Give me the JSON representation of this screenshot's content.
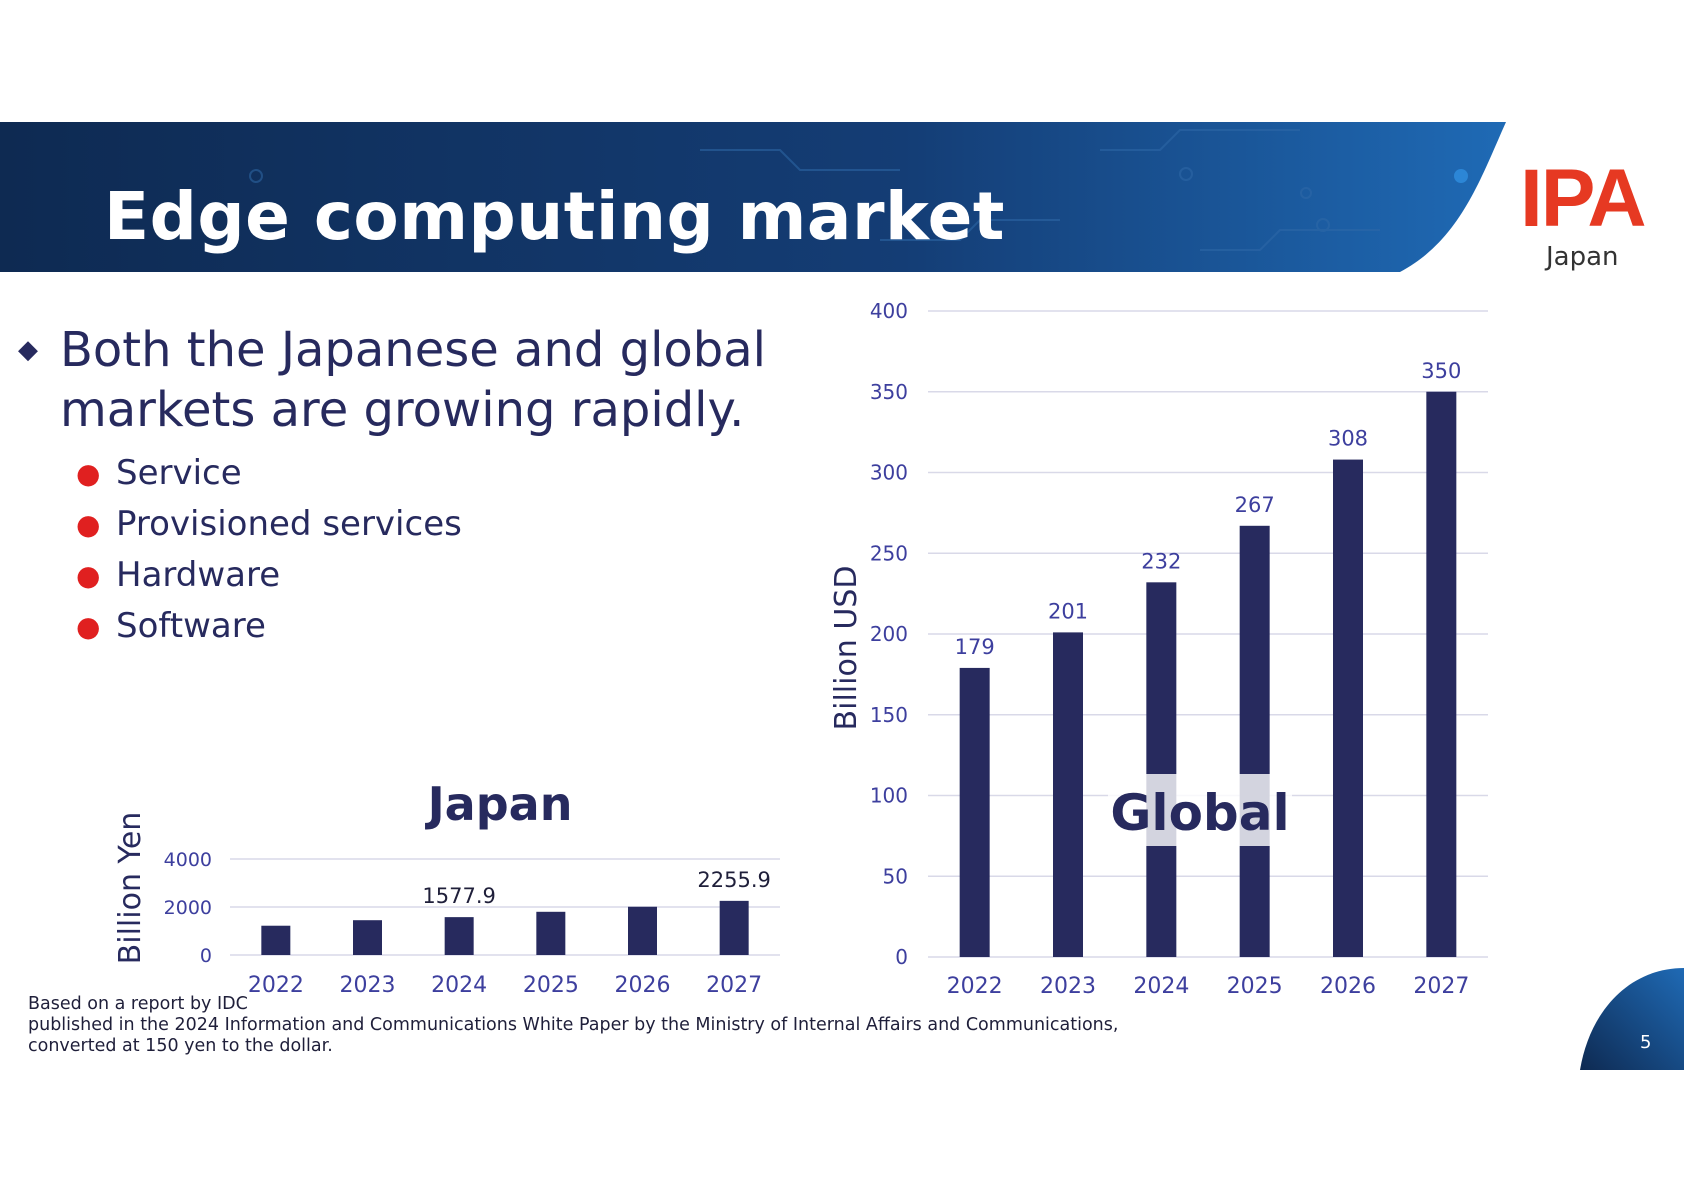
{
  "slide": {
    "title": "Edge computing market",
    "logo": {
      "text": "IPA",
      "subtitle": "Japan"
    },
    "bullet_main": "Both the Japanese and global markets are growing rapidly.",
    "sub_bullets": [
      "Service",
      "Provisioned services",
      "Hardware",
      "Software"
    ],
    "footnote_lines": [
      "Based on a report by IDC",
      "published in the 2024 Information and Communications White Paper by the Ministry of Internal Affairs and Communications,",
      "converted at 150 yen to the dollar."
    ],
    "page_number": "5"
  },
  "colors": {
    "bar": "#272a5e",
    "axis_text": "#3d3f9e",
    "grid": "#d9d9e8",
    "accent_red": "#e63922",
    "banner_dark": "#0e2a52",
    "banner_light": "#1f6ab5"
  },
  "chart_data": [
    {
      "type": "bar",
      "title": "Japan",
      "ylabel": "Billion Yen",
      "categories": [
        "2022",
        "2023",
        "2024",
        "2025",
        "2026",
        "2027"
      ],
      "values": [
        1220,
        1450,
        1577.9,
        1800,
        2010,
        2255.9
      ],
      "data_labels": [
        null,
        null,
        "1577.9",
        null,
        null,
        "2255.9"
      ],
      "yticks": [
        0,
        2000,
        4000
      ],
      "ylim": [
        0,
        4000
      ]
    },
    {
      "type": "bar",
      "title": "Global",
      "ylabel": "Billion USD",
      "categories": [
        "2022",
        "2023",
        "2024",
        "2025",
        "2026",
        "2027"
      ],
      "values": [
        179,
        201,
        232,
        267,
        308,
        350
      ],
      "data_labels": [
        "179",
        "201",
        "232",
        "267",
        "308",
        "350"
      ],
      "yticks": [
        0,
        50,
        100,
        150,
        200,
        250,
        300,
        350,
        400
      ],
      "ylim": [
        0,
        400
      ]
    }
  ]
}
